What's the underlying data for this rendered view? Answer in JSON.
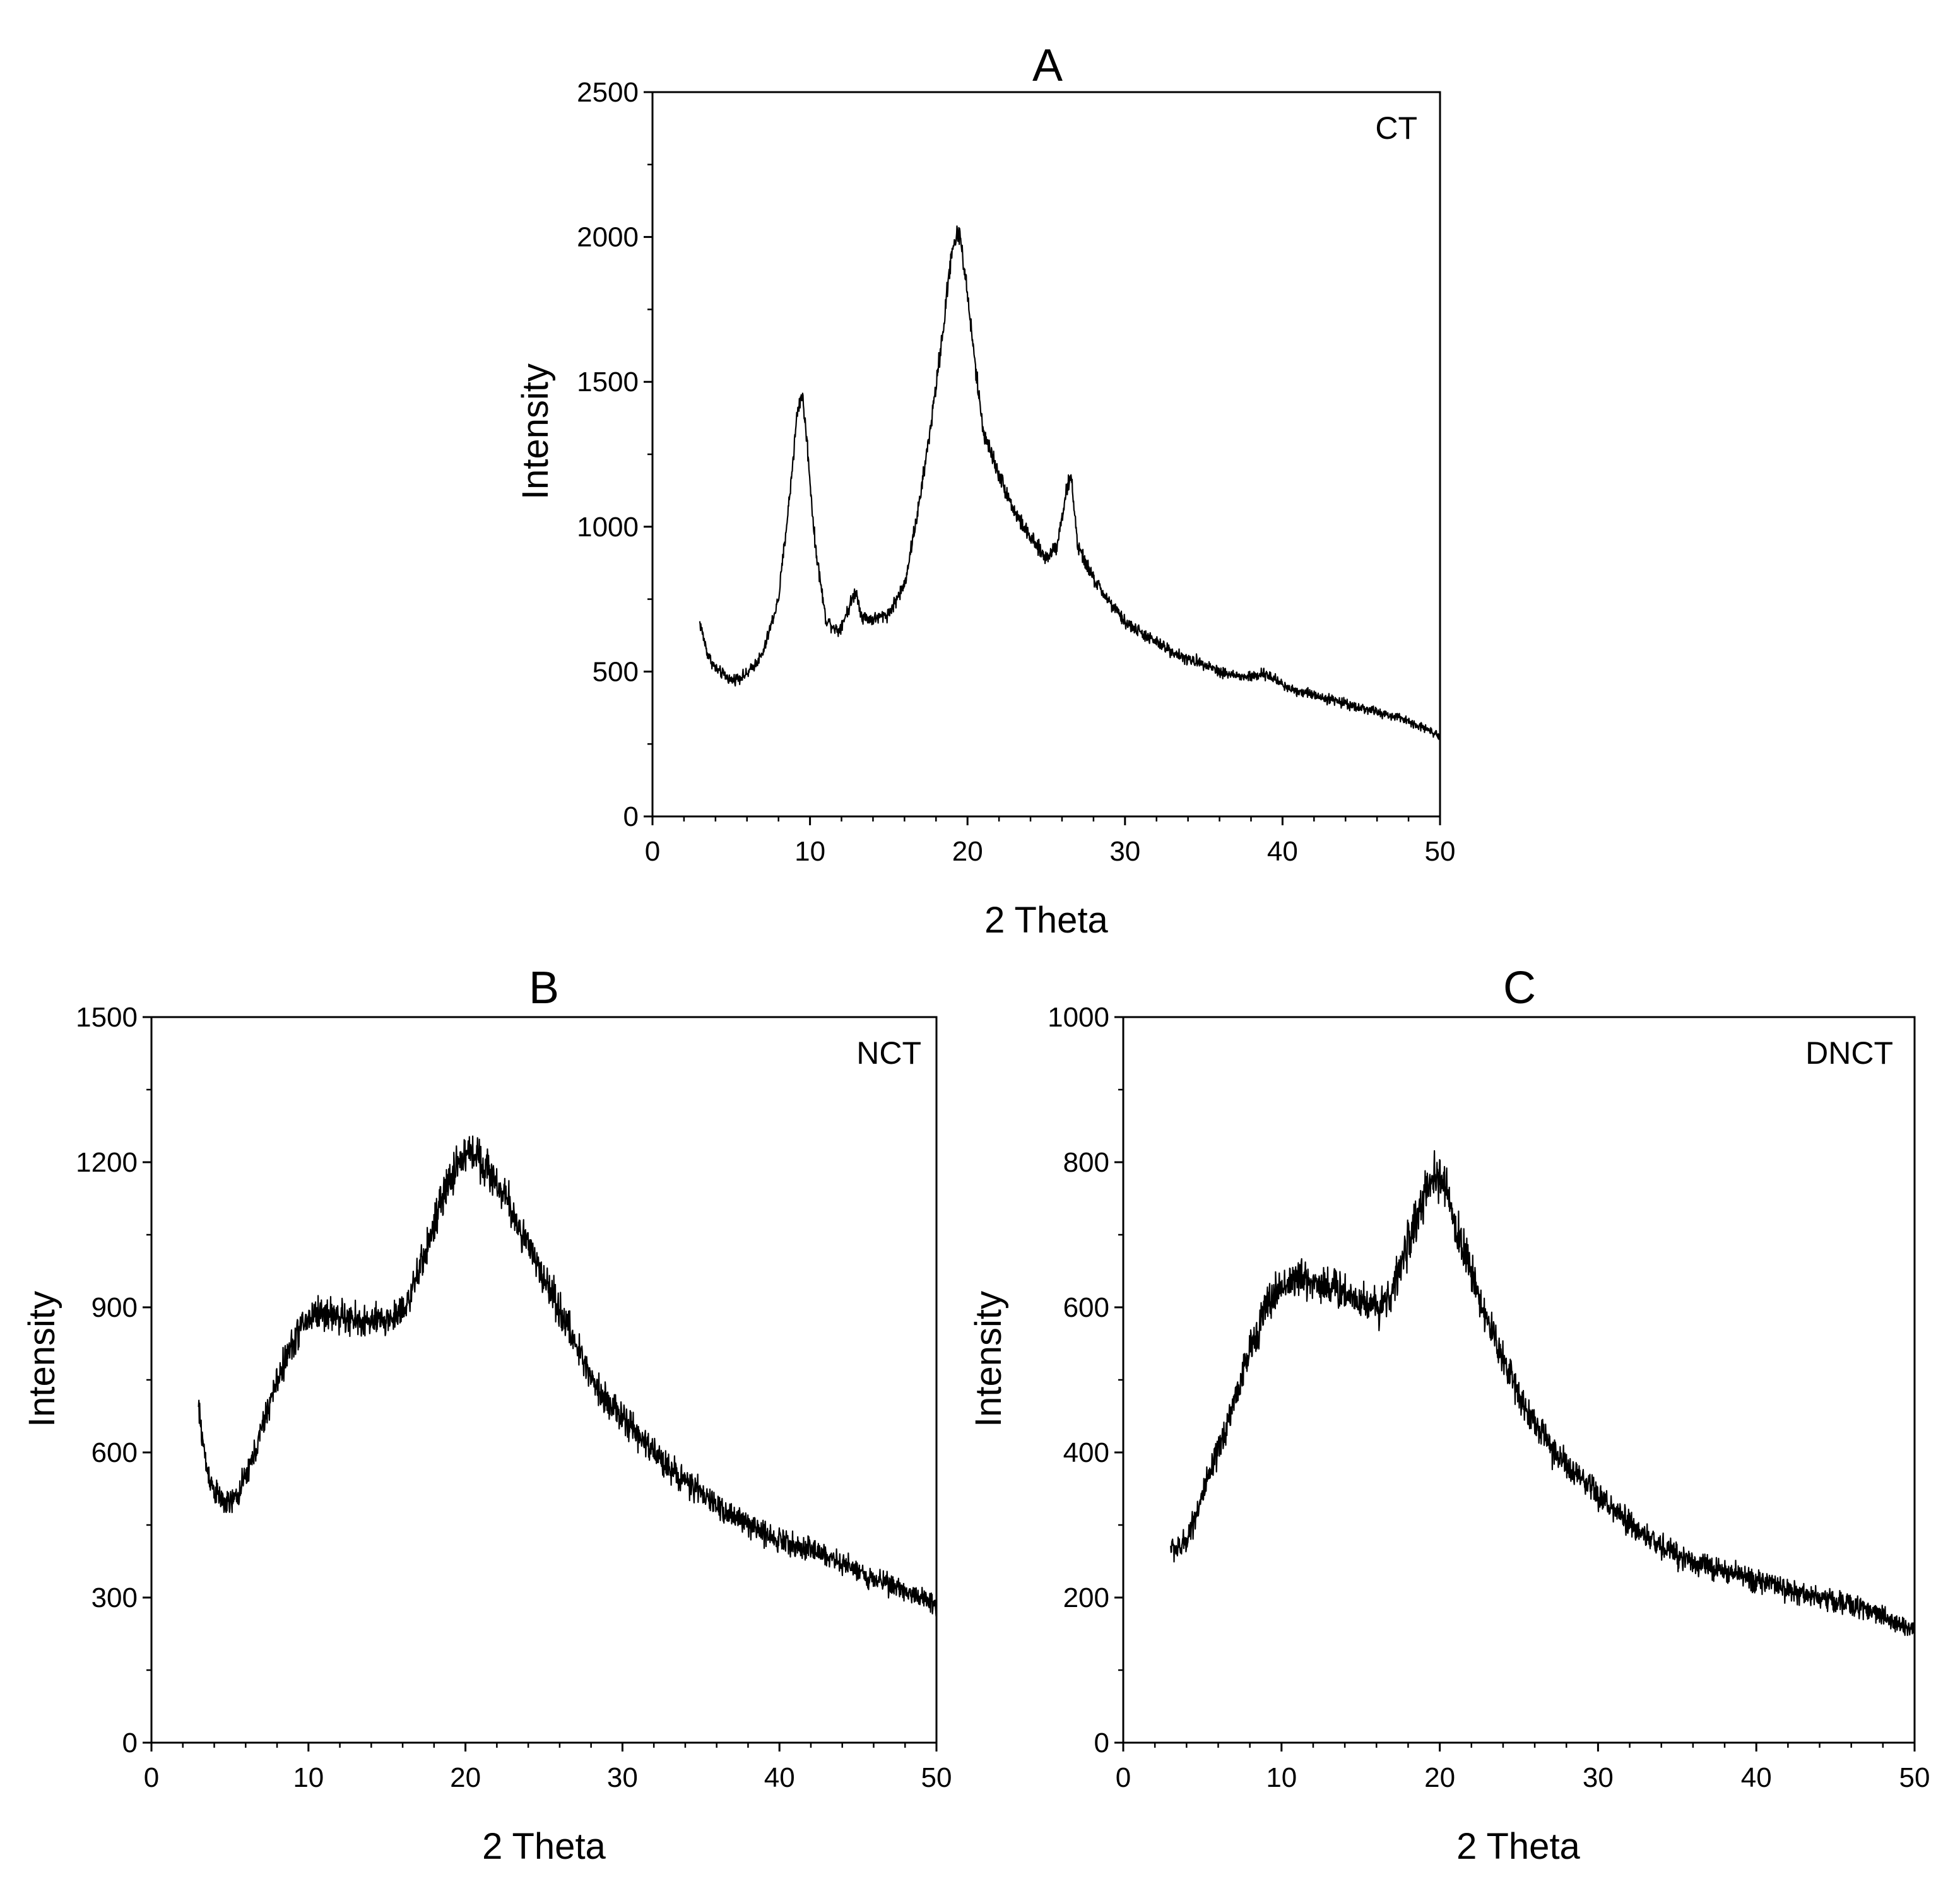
{
  "chart_data": [
    {
      "panel": "A",
      "type": "line",
      "title": "A",
      "sample_label": "CT",
      "xlabel": "2 Theta",
      "ylabel": "Intensity",
      "xlim": [
        0,
        50
      ],
      "ylim": [
        0,
        2500
      ],
      "xticks": [
        0,
        10,
        20,
        30,
        40,
        50
      ],
      "yticks": [
        0,
        500,
        1000,
        1500,
        2000,
        2500
      ],
      "x_minor_step": 2,
      "y_minor_step": 250,
      "noise_amplitude": 30,
      "series": [
        {
          "name": "CT",
          "x": [
            3,
            3.5,
            4,
            5,
            6,
            7,
            8,
            8.7,
            9.2,
            9.5,
            9.8,
            10.3,
            11,
            11.8,
            12.4,
            12.9,
            13.3,
            14,
            15,
            16,
            17,
            17.8,
            18.5,
            19,
            19.5,
            20,
            20.5,
            21,
            22,
            23,
            24,
            25,
            25.7,
            26.3,
            26.6,
            27,
            28,
            29,
            30,
            32,
            34,
            35,
            36,
            37.5,
            39,
            40.5,
            42,
            44,
            46,
            48,
            50
          ],
          "y": [
            670,
            560,
            510,
            470,
            490,
            560,
            750,
            1100,
            1400,
            1460,
            1300,
            950,
            680,
            640,
            710,
            780,
            690,
            680,
            700,
            800,
            1100,
            1400,
            1700,
            1960,
            2020,
            1800,
            1550,
            1330,
            1180,
            1050,
            960,
            890,
            940,
            1130,
            1170,
            930,
            820,
            740,
            670,
            600,
            540,
            530,
            500,
            480,
            490,
            440,
            420,
            390,
            360,
            330,
            280
          ]
        }
      ]
    },
    {
      "panel": "B",
      "type": "line",
      "title": "B",
      "sample_label": "NCT",
      "xlabel": "2 Theta",
      "ylabel": "Intensity",
      "xlim": [
        0,
        50
      ],
      "ylim": [
        0,
        1500
      ],
      "xticks": [
        0,
        10,
        20,
        30,
        40,
        50
      ],
      "yticks": [
        0,
        300,
        600,
        900,
        1200,
        1500
      ],
      "x_minor_step": 2,
      "y_minor_step": 150,
      "noise_amplitude": 32,
      "series": [
        {
          "name": "NCT",
          "x": [
            3,
            3.5,
            4,
            4.8,
            5.5,
            6.5,
            7.5,
            8.5,
            9.5,
            10.5,
            11.5,
            12.5,
            13.5,
            14.5,
            15.5,
            16.5,
            17.5,
            18.5,
            19.5,
            20.5,
            21.5,
            22.5,
            23.5,
            24.5,
            25.5,
            26.5,
            27.5,
            28.5,
            30,
            32,
            34,
            36,
            38,
            40,
            42,
            44,
            46,
            48,
            50
          ],
          "y": [
            690,
            570,
            520,
            490,
            510,
            590,
            700,
            790,
            860,
            890,
            885,
            875,
            870,
            870,
            880,
            920,
            1020,
            1120,
            1200,
            1225,
            1180,
            1130,
            1060,
            990,
            930,
            860,
            790,
            730,
            670,
            600,
            540,
            490,
            450,
            420,
            400,
            370,
            340,
            315,
            285
          ]
        }
      ]
    },
    {
      "panel": "C",
      "type": "line",
      "title": "C",
      "sample_label": "DNCT",
      "xlabel": "2 Theta",
      "ylabel": "Intensity",
      "xlim": [
        0,
        50
      ],
      "ylim": [
        0,
        1000
      ],
      "xticks": [
        0,
        10,
        20,
        30,
        40,
        50
      ],
      "yticks": [
        0,
        200,
        400,
        600,
        800,
        1000
      ],
      "x_minor_step": 2,
      "y_minor_step": 100,
      "noise_amplitude": 24,
      "series": [
        {
          "name": "DNCT",
          "x": [
            3,
            3.5,
            4,
            5,
            6,
            7,
            8,
            9,
            10,
            11,
            12,
            13,
            14,
            15,
            16,
            17,
            18,
            19,
            19.7,
            20.3,
            21,
            22,
            23,
            24,
            25,
            26,
            27,
            28,
            30,
            32,
            34,
            36,
            38,
            40,
            42,
            44,
            46,
            48,
            50
          ],
          "y": [
            270,
            265,
            280,
            340,
            400,
            470,
            540,
            600,
            630,
            640,
            635,
            630,
            620,
            610,
            600,
            620,
            690,
            750,
            780,
            770,
            710,
            650,
            580,
            530,
            480,
            440,
            410,
            380,
            340,
            300,
            270,
            250,
            235,
            225,
            210,
            200,
            190,
            175,
            155
          ]
        }
      ]
    }
  ]
}
